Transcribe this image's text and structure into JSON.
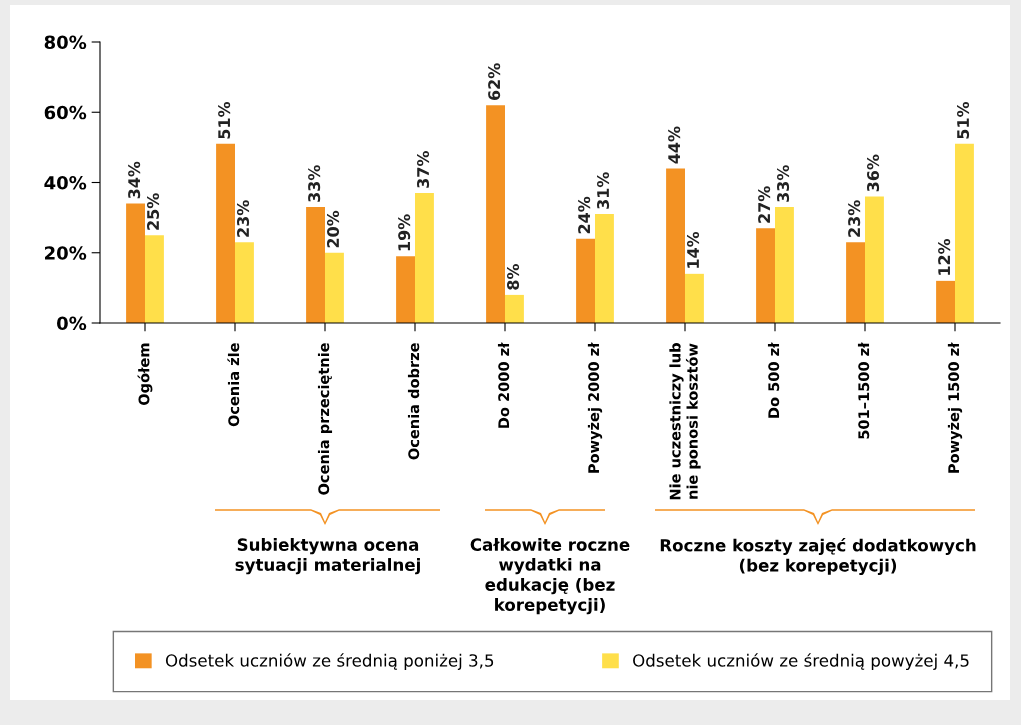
{
  "chart_data": {
    "type": "bar",
    "categories": [
      "Ogółem",
      "Ocenia źle",
      "Ocenia przeciętnie",
      "Ocenia dobrze",
      "Do 2000 zł",
      "Powyżej 2000 zł",
      "Nie uczestniczy lub\nnie ponosi kosztów",
      "Do 500 zł",
      "501–1500 zł",
      "Powyżej 1500 zł"
    ],
    "series": [
      {
        "name": "Odsetek uczniów ze średnią poniżej 3,5",
        "color": "#f39223",
        "values": [
          34,
          51,
          33,
          19,
          62,
          24,
          44,
          27,
          23,
          12
        ],
        "value_labels": [
          "34%",
          "51%",
          "33%",
          "19%",
          "62%",
          "24%",
          "44%",
          "27%",
          "23%",
          "12%"
        ]
      },
      {
        "name": "Odsetek uczniów ze średnią powyżej 4,5",
        "color": "#ffdf4a",
        "values": [
          25,
          23,
          20,
          37,
          8,
          31,
          14,
          33,
          36,
          51
        ],
        "value_labels": [
          "25%",
          "23%",
          "20%",
          "37%",
          "8%",
          "31%",
          "14%",
          "33%",
          "36%",
          "51%"
        ]
      }
    ],
    "ylim": [
      0,
      80
    ],
    "yticks": [
      {
        "value": 0,
        "label": "0%"
      },
      {
        "value": 20,
        "label": "20%"
      },
      {
        "value": 40,
        "label": "40%"
      },
      {
        "value": 60,
        "label": "60%"
      },
      {
        "value": 80,
        "label": "80%"
      }
    ],
    "grid": false,
    "legend": "bottom",
    "annotations": [
      "Subiektywna ocena\nsytuacji materialnej",
      "Całkowite roczne\nwydatki na\nedukację (bez\nkorepetycji)",
      "Roczne koszty zajęć dodatkowych\n(bez korepetycji)"
    ]
  }
}
